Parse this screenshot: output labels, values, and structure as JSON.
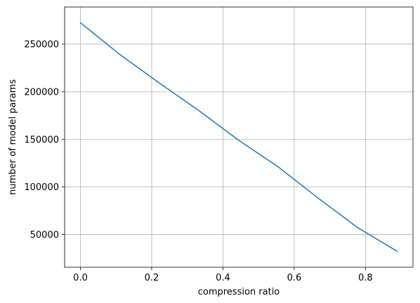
{
  "chart_data": {
    "type": "line",
    "title": "",
    "xlabel": "compression ratio",
    "ylabel": "number of model params",
    "xlim": [
      -0.0444,
      0.9333
    ],
    "ylim": [
      15800,
      289000
    ],
    "xticks": [
      0.0,
      0.2,
      0.4,
      0.6,
      0.8
    ],
    "xtick_labels": [
      "0.0",
      "0.2",
      "0.4",
      "0.6",
      "0.8"
    ],
    "yticks": [
      50000,
      100000,
      150000,
      200000,
      250000
    ],
    "ytick_labels": [
      "50000",
      "100000",
      "150000",
      "200000",
      "250000"
    ],
    "grid": true,
    "legend": "none",
    "series": [
      {
        "color": "#1f77b4",
        "x": [
          0.0,
          0.1111,
          0.2222,
          0.3333,
          0.4444,
          0.5556,
          0.6667,
          0.7778,
          0.8889
        ],
        "y": [
          272500,
          239000,
          209000,
          180000,
          149000,
          121000,
          88500,
          57500,
          32500
        ]
      }
    ]
  }
}
